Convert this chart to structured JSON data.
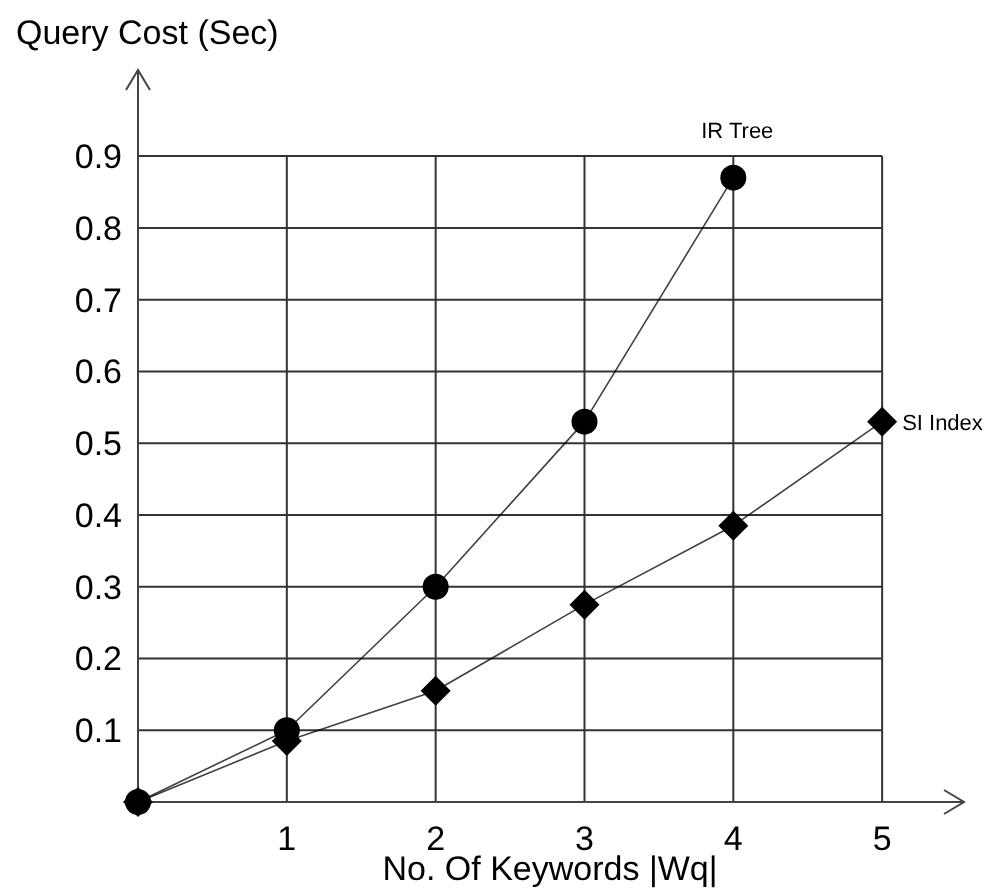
{
  "chart_data": {
    "type": "line",
    "xlabel": "No. Of Keywords |Wq|",
    "ylabel": "Query Cost (Sec)",
    "xlim": [
      0,
      5.55
    ],
    "ylim": [
      0,
      1.02
    ],
    "xticks": [
      1,
      2,
      3,
      4,
      5
    ],
    "yticks": [
      0.1,
      0.2,
      0.3,
      0.4,
      0.5,
      0.6,
      0.7,
      0.8,
      0.9
    ],
    "grid": true,
    "series": [
      {
        "name": "IR Tree",
        "color": "#000000",
        "marker": "circle",
        "x": [
          0,
          1,
          2,
          3,
          4
        ],
        "values": [
          0,
          0.1,
          0.3,
          0.53,
          0.87
        ]
      },
      {
        "name": "SI Index",
        "color": "#000000",
        "marker": "diamond",
        "x": [
          0,
          1,
          2,
          3,
          4,
          5
        ],
        "values": [
          0,
          0.085,
          0.155,
          0.275,
          0.385,
          0.53
        ]
      }
    ]
  }
}
